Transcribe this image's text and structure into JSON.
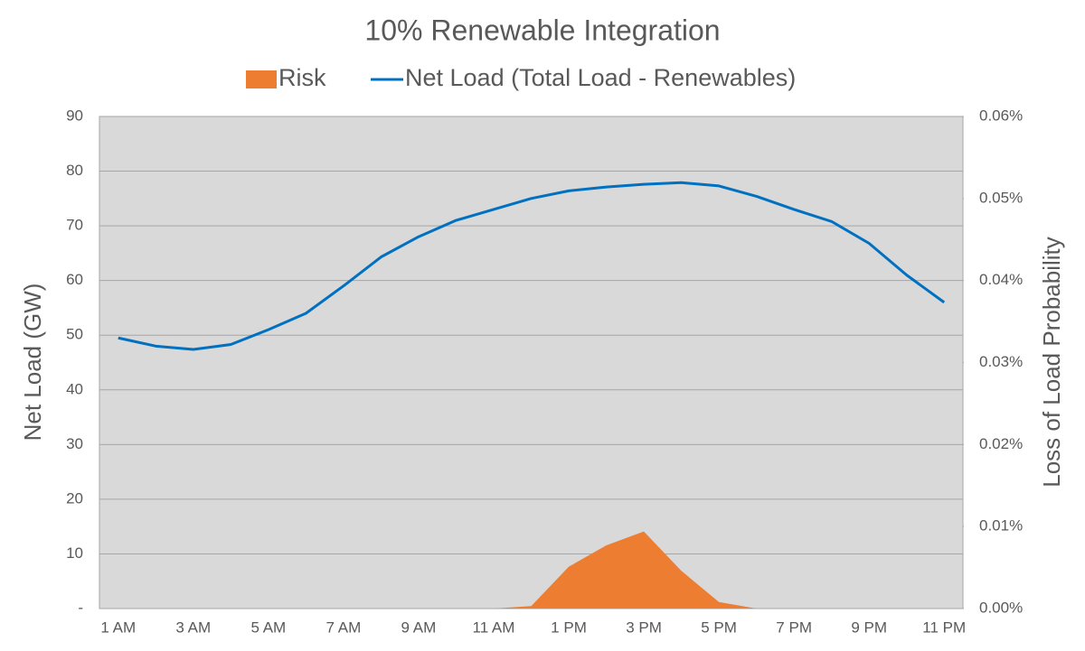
{
  "chart_data": {
    "type": "line",
    "title": "10% Renewable Integration",
    "y_label": "Net Load (GW)",
    "y2_label": "Loss of Load Probability",
    "categories": [
      "1 AM",
      null,
      "3 AM",
      null,
      "5 AM",
      null,
      "7 AM",
      null,
      "9 AM",
      null,
      "11 AM",
      null,
      "1 PM",
      null,
      "3 PM",
      null,
      "5 PM",
      null,
      "7 PM",
      null,
      "9 PM",
      null,
      "11 PM"
    ],
    "series": [
      {
        "name": "Risk",
        "type": "area",
        "axis": "y2",
        "color": "#ed7d31",
        "values": [
          0,
          0,
          0,
          0,
          0,
          0,
          0,
          0,
          0,
          0,
          0,
          0.0003,
          0.0051,
          0.0077,
          0.0094,
          0.0046,
          0.0008,
          0,
          0,
          0,
          0,
          0,
          0
        ]
      },
      {
        "name": "Net Load (Total Load - Renewables)",
        "type": "line",
        "axis": "y",
        "color": "#0070c0",
        "values": [
          49.5,
          48,
          47.4,
          48.3,
          51,
          54,
          59,
          64.3,
          68,
          71,
          73,
          75,
          76.4,
          77.1,
          77.6,
          77.9,
          77.3,
          75.4,
          73,
          70.8,
          66.8,
          61,
          56
        ]
      }
    ],
    "ylim": [
      0,
      90
    ],
    "yticks": [
      {
        "value": 0,
        "label": "-"
      },
      10,
      20,
      30,
      40,
      50,
      60,
      70,
      80,
      90
    ],
    "y2lim": [
      0,
      0.06
    ],
    "y2ticks": [
      {
        "value": 0,
        "label": "0.00%"
      },
      {
        "value": 0.01,
        "label": "0.01%"
      },
      {
        "value": 0.02,
        "label": "0.02%"
      },
      {
        "value": 0.03,
        "label": "0.03%"
      },
      {
        "value": 0.04,
        "label": "0.04%"
      },
      {
        "value": 0.05,
        "label": "0.05%"
      },
      {
        "value": 0.06,
        "label": "0.06%"
      }
    ],
    "grid": true,
    "legend": "top"
  }
}
